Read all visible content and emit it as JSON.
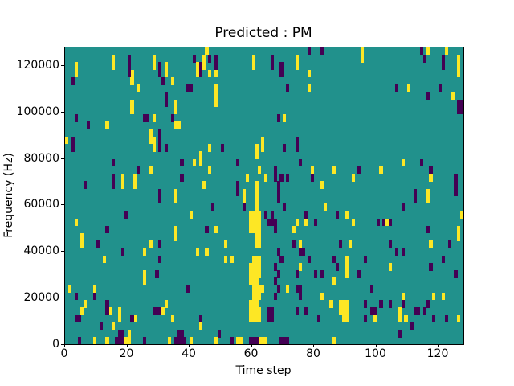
{
  "chart_data": {
    "type": "heatmap",
    "title": "Predicted : PM",
    "xlabel": "Time step",
    "ylabel": "Frequency (Hz)",
    "x_ticks": [
      0,
      20,
      40,
      60,
      80,
      100,
      120
    ],
    "y_ticks": [
      0,
      20000,
      40000,
      60000,
      80000,
      100000,
      120000
    ],
    "x_range": [
      0,
      128
    ],
    "y_range": [
      0,
      128000
    ],
    "grid": {
      "cols": 128,
      "rows": 40,
      "rows_indexed_from_top": true
    },
    "legend_position": "none",
    "grid_lines": false,
    "colors": {
      "background_class": "#21918c",
      "low_class": "#440154",
      "high_class": "#fde725",
      "figure_bg": "#ffffff",
      "axis": "#000000"
    },
    "cells_high": [
      [
        3,
        2
      ],
      [
        3,
        3
      ],
      [
        15,
        1
      ],
      [
        15,
        2
      ],
      [
        21,
        3
      ],
      [
        21,
        4
      ],
      [
        23,
        5
      ],
      [
        28,
        1
      ],
      [
        28,
        2
      ],
      [
        32,
        2
      ],
      [
        32,
        3
      ],
      [
        34,
        4
      ],
      [
        35,
        7
      ],
      [
        35,
        8
      ],
      [
        21,
        7
      ],
      [
        21,
        8
      ],
      [
        28,
        9
      ],
      [
        13,
        10
      ],
      [
        35,
        10
      ],
      [
        36,
        10
      ],
      [
        27,
        11
      ],
      [
        27,
        12
      ],
      [
        28,
        12
      ],
      [
        28,
        13
      ],
      [
        0,
        12
      ],
      [
        42,
        2
      ],
      [
        42,
        3
      ],
      [
        45,
        0
      ],
      [
        44,
        1
      ],
      [
        44,
        2
      ],
      [
        46,
        3
      ],
      [
        48,
        3
      ],
      [
        60,
        1
      ],
      [
        60,
        2
      ],
      [
        74,
        1
      ],
      [
        74,
        2
      ],
      [
        78,
        3
      ],
      [
        78,
        5
      ],
      [
        48,
        5
      ],
      [
        48,
        6
      ],
      [
        48,
        7
      ],
      [
        70,
        9
      ],
      [
        63,
        12
      ],
      [
        63,
        13
      ],
      [
        46,
        13
      ],
      [
        95,
        0
      ],
      [
        95,
        1
      ],
      [
        116,
        0
      ],
      [
        122,
        0
      ],
      [
        126,
        1
      ],
      [
        126,
        2
      ],
      [
        126,
        3
      ],
      [
        110,
        5
      ],
      [
        124,
        6
      ],
      [
        41,
        15
      ],
      [
        27,
        16
      ],
      [
        18,
        17
      ],
      [
        18,
        18
      ],
      [
        22,
        17
      ],
      [
        22,
        18
      ],
      [
        35,
        19
      ],
      [
        35,
        20
      ],
      [
        40,
        22
      ],
      [
        3,
        23
      ],
      [
        35,
        24
      ],
      [
        35,
        25
      ],
      [
        5,
        25
      ],
      [
        5,
        26
      ],
      [
        27,
        26
      ],
      [
        61,
        13
      ],
      [
        61,
        14
      ],
      [
        43,
        14
      ],
      [
        43,
        15
      ],
      [
        46,
        16
      ],
      [
        62,
        16
      ],
      [
        79,
        16
      ],
      [
        58,
        17
      ],
      [
        64,
        17
      ],
      [
        44,
        18
      ],
      [
        82,
        18
      ],
      [
        57,
        19
      ],
      [
        57,
        20
      ],
      [
        61,
        18
      ],
      [
        61,
        19
      ],
      [
        61,
        20
      ],
      [
        61,
        21
      ],
      [
        83,
        21
      ],
      [
        59,
        22
      ],
      [
        60,
        22
      ],
      [
        61,
        22
      ],
      [
        62,
        22
      ],
      [
        59,
        23
      ],
      [
        60,
        23
      ],
      [
        61,
        23
      ],
      [
        62,
        23
      ],
      [
        74,
        23
      ],
      [
        77,
        23
      ],
      [
        59,
        24
      ],
      [
        60,
        24
      ],
      [
        61,
        24
      ],
      [
        62,
        24
      ],
      [
        48,
        24
      ],
      [
        73,
        24
      ],
      [
        61,
        25
      ],
      [
        62,
        25
      ],
      [
        61,
        26
      ],
      [
        62,
        26
      ],
      [
        51,
        26
      ],
      [
        75,
        26
      ],
      [
        108,
        15
      ],
      [
        86,
        16
      ],
      [
        101,
        16
      ],
      [
        92,
        17
      ],
      [
        117,
        17
      ],
      [
        116,
        19
      ],
      [
        116,
        20
      ],
      [
        90,
        22
      ],
      [
        127,
        22
      ],
      [
        92,
        23
      ],
      [
        103,
        23
      ],
      [
        126,
        24
      ],
      [
        126,
        25
      ],
      [
        91,
        26
      ],
      [
        117,
        26
      ],
      [
        25,
        27
      ],
      [
        42,
        27
      ],
      [
        12,
        28
      ],
      [
        25,
        30
      ],
      [
        25,
        31
      ],
      [
        1,
        32
      ],
      [
        9,
        32
      ],
      [
        32,
        34
      ],
      [
        6,
        34
      ],
      [
        5,
        35
      ],
      [
        14,
        35
      ],
      [
        17,
        35
      ],
      [
        31,
        35
      ],
      [
        17,
        36
      ],
      [
        22,
        36
      ],
      [
        34,
        36
      ],
      [
        15,
        37
      ],
      [
        20,
        38
      ],
      [
        9,
        39
      ],
      [
        13,
        39
      ],
      [
        19,
        39
      ],
      [
        20,
        39
      ],
      [
        33,
        39
      ],
      [
        40,
        39
      ],
      [
        45,
        27
      ],
      [
        51,
        28
      ],
      [
        53,
        28
      ],
      [
        60,
        28
      ],
      [
        61,
        28
      ],
      [
        62,
        28
      ],
      [
        59,
        29
      ],
      [
        60,
        29
      ],
      [
        61,
        29
      ],
      [
        62,
        29
      ],
      [
        75,
        29
      ],
      [
        59,
        30
      ],
      [
        60,
        30
      ],
      [
        61,
        30
      ],
      [
        62,
        30
      ],
      [
        59,
        31
      ],
      [
        60,
        31
      ],
      [
        61,
        31
      ],
      [
        60,
        32
      ],
      [
        61,
        32
      ],
      [
        62,
        32
      ],
      [
        63,
        32
      ],
      [
        71,
        32
      ],
      [
        60,
        33
      ],
      [
        61,
        33
      ],
      [
        62,
        33
      ],
      [
        82,
        33
      ],
      [
        59,
        34
      ],
      [
        60,
        34
      ],
      [
        61,
        34
      ],
      [
        85,
        34
      ],
      [
        59,
        35
      ],
      [
        60,
        35
      ],
      [
        61,
        35
      ],
      [
        62,
        35
      ],
      [
        59,
        36
      ],
      [
        60,
        36
      ],
      [
        61,
        36
      ],
      [
        62,
        36
      ],
      [
        43,
        37
      ],
      [
        48,
        39
      ],
      [
        55,
        39
      ],
      [
        56,
        39
      ],
      [
        62,
        39
      ],
      [
        63,
        39
      ],
      [
        64,
        39
      ],
      [
        90,
        28
      ],
      [
        90,
        29
      ],
      [
        104,
        29
      ],
      [
        90,
        30
      ],
      [
        86,
        31
      ],
      [
        108,
        33
      ],
      [
        118,
        33
      ],
      [
        121,
        33
      ],
      [
        88,
        34
      ],
      [
        89,
        34
      ],
      [
        90,
        34
      ],
      [
        88,
        35
      ],
      [
        89,
        35
      ],
      [
        90,
        35
      ],
      [
        107,
        35
      ],
      [
        89,
        36
      ],
      [
        90,
        36
      ],
      [
        99,
        36
      ],
      [
        107,
        36
      ],
      [
        109,
        36
      ],
      [
        126,
        36
      ],
      [
        86,
        39
      ]
    ],
    "cells_low": [
      [
        41,
        1
      ],
      [
        20,
        1
      ],
      [
        20,
        2
      ],
      [
        20,
        3
      ],
      [
        30,
        2
      ],
      [
        30,
        3
      ],
      [
        2,
        4
      ],
      [
        31,
        4
      ],
      [
        39,
        5
      ],
      [
        40,
        5
      ],
      [
        32,
        6
      ],
      [
        32,
        7
      ],
      [
        3,
        9
      ],
      [
        25,
        9
      ],
      [
        26,
        9
      ],
      [
        34,
        9
      ],
      [
        7,
        10
      ],
      [
        30,
        11
      ],
      [
        30,
        12
      ],
      [
        30,
        13
      ],
      [
        2,
        12
      ],
      [
        2,
        13
      ],
      [
        32,
        13
      ],
      [
        78,
        0
      ],
      [
        82,
        0
      ],
      [
        46,
        1
      ],
      [
        48,
        1
      ],
      [
        48,
        2
      ],
      [
        43,
        2
      ],
      [
        43,
        3
      ],
      [
        66,
        1
      ],
      [
        66,
        2
      ],
      [
        69,
        2
      ],
      [
        69,
        3
      ],
      [
        71,
        5
      ],
      [
        68,
        9
      ],
      [
        74,
        12
      ],
      [
        74,
        13
      ],
      [
        114,
        0
      ],
      [
        115,
        1
      ],
      [
        121,
        1
      ],
      [
        121,
        2
      ],
      [
        106,
        5
      ],
      [
        120,
        5
      ],
      [
        116,
        6
      ],
      [
        126,
        7
      ],
      [
        127,
        7
      ],
      [
        126,
        8
      ],
      [
        127,
        8
      ],
      [
        15,
        15
      ],
      [
        23,
        16
      ],
      [
        37,
        15
      ],
      [
        15,
        17
      ],
      [
        15,
        18
      ],
      [
        37,
        17
      ],
      [
        6,
        18
      ],
      [
        30,
        19
      ],
      [
        30,
        20
      ],
      [
        19,
        22
      ],
      [
        13,
        24
      ],
      [
        10,
        26
      ],
      [
        30,
        26
      ],
      [
        50,
        13
      ],
      [
        70,
        13
      ],
      [
        55,
        15
      ],
      [
        75,
        15
      ],
      [
        67,
        16
      ],
      [
        67,
        17
      ],
      [
        69,
        17
      ],
      [
        71,
        17
      ],
      [
        79,
        17
      ],
      [
        55,
        18
      ],
      [
        55,
        19
      ],
      [
        68,
        18
      ],
      [
        68,
        19
      ],
      [
        68,
        20
      ],
      [
        47,
        21
      ],
      [
        57,
        21
      ],
      [
        70,
        21
      ],
      [
        64,
        22
      ],
      [
        66,
        22
      ],
      [
        77,
        22
      ],
      [
        65,
        23
      ],
      [
        66,
        23
      ],
      [
        67,
        23
      ],
      [
        80,
        23
      ],
      [
        67,
        24
      ],
      [
        45,
        24
      ],
      [
        73,
        26
      ],
      [
        114,
        15
      ],
      [
        94,
        16
      ],
      [
        117,
        16
      ],
      [
        125,
        17
      ],
      [
        125,
        18
      ],
      [
        125,
        19
      ],
      [
        112,
        19
      ],
      [
        112,
        20
      ],
      [
        108,
        21
      ],
      [
        87,
        22
      ],
      [
        100,
        23
      ],
      [
        102,
        23
      ],
      [
        104,
        23
      ],
      [
        116,
        24
      ],
      [
        88,
        26
      ],
      [
        104,
        26
      ],
      [
        123,
        26
      ],
      [
        18,
        27
      ],
      [
        30,
        28
      ],
      [
        29,
        30
      ],
      [
        39,
        32
      ],
      [
        3,
        33
      ],
      [
        9,
        33
      ],
      [
        13,
        34
      ],
      [
        13,
        35
      ],
      [
        28,
        35
      ],
      [
        29,
        35
      ],
      [
        30,
        35
      ],
      [
        3,
        36
      ],
      [
        4,
        36
      ],
      [
        21,
        36
      ],
      [
        11,
        37
      ],
      [
        17,
        38
      ],
      [
        18,
        38
      ],
      [
        36,
        38
      ],
      [
        37,
        38
      ],
      [
        4,
        39
      ],
      [
        16,
        39
      ],
      [
        17,
        39
      ],
      [
        18,
        39
      ],
      [
        25,
        39
      ],
      [
        35,
        39
      ],
      [
        36,
        39
      ],
      [
        37,
        39
      ],
      [
        38,
        39
      ],
      [
        68,
        27
      ],
      [
        75,
        27
      ],
      [
        76,
        27
      ],
      [
        69,
        28
      ],
      [
        78,
        28
      ],
      [
        67,
        29
      ],
      [
        68,
        30
      ],
      [
        74,
        30
      ],
      [
        80,
        30
      ],
      [
        82,
        30
      ],
      [
        67,
        31
      ],
      [
        68,
        32
      ],
      [
        74,
        32
      ],
      [
        75,
        32
      ],
      [
        67,
        33
      ],
      [
        75,
        33
      ],
      [
        74,
        35
      ],
      [
        77,
        35
      ],
      [
        65,
        35
      ],
      [
        66,
        35
      ],
      [
        65,
        36
      ],
      [
        66,
        36
      ],
      [
        81,
        36
      ],
      [
        43,
        36
      ],
      [
        49,
        38
      ],
      [
        53,
        39
      ],
      [
        59,
        39
      ],
      [
        60,
        39
      ],
      [
        61,
        39
      ],
      [
        69,
        39
      ],
      [
        70,
        39
      ],
      [
        71,
        39
      ],
      [
        106,
        27
      ],
      [
        108,
        27
      ],
      [
        86,
        28
      ],
      [
        96,
        28
      ],
      [
        121,
        28
      ],
      [
        87,
        29
      ],
      [
        117,
        29
      ],
      [
        94,
        30
      ],
      [
        125,
        30
      ],
      [
        98,
        32
      ],
      [
        96,
        34
      ],
      [
        101,
        34
      ],
      [
        104,
        34
      ],
      [
        108,
        34
      ],
      [
        116,
        34
      ],
      [
        98,
        35
      ],
      [
        99,
        35
      ],
      [
        112,
        35
      ],
      [
        113,
        35
      ],
      [
        115,
        35
      ],
      [
        96,
        36
      ],
      [
        118,
        36
      ],
      [
        122,
        36
      ],
      [
        111,
        37
      ],
      [
        107,
        38
      ]
    ]
  }
}
